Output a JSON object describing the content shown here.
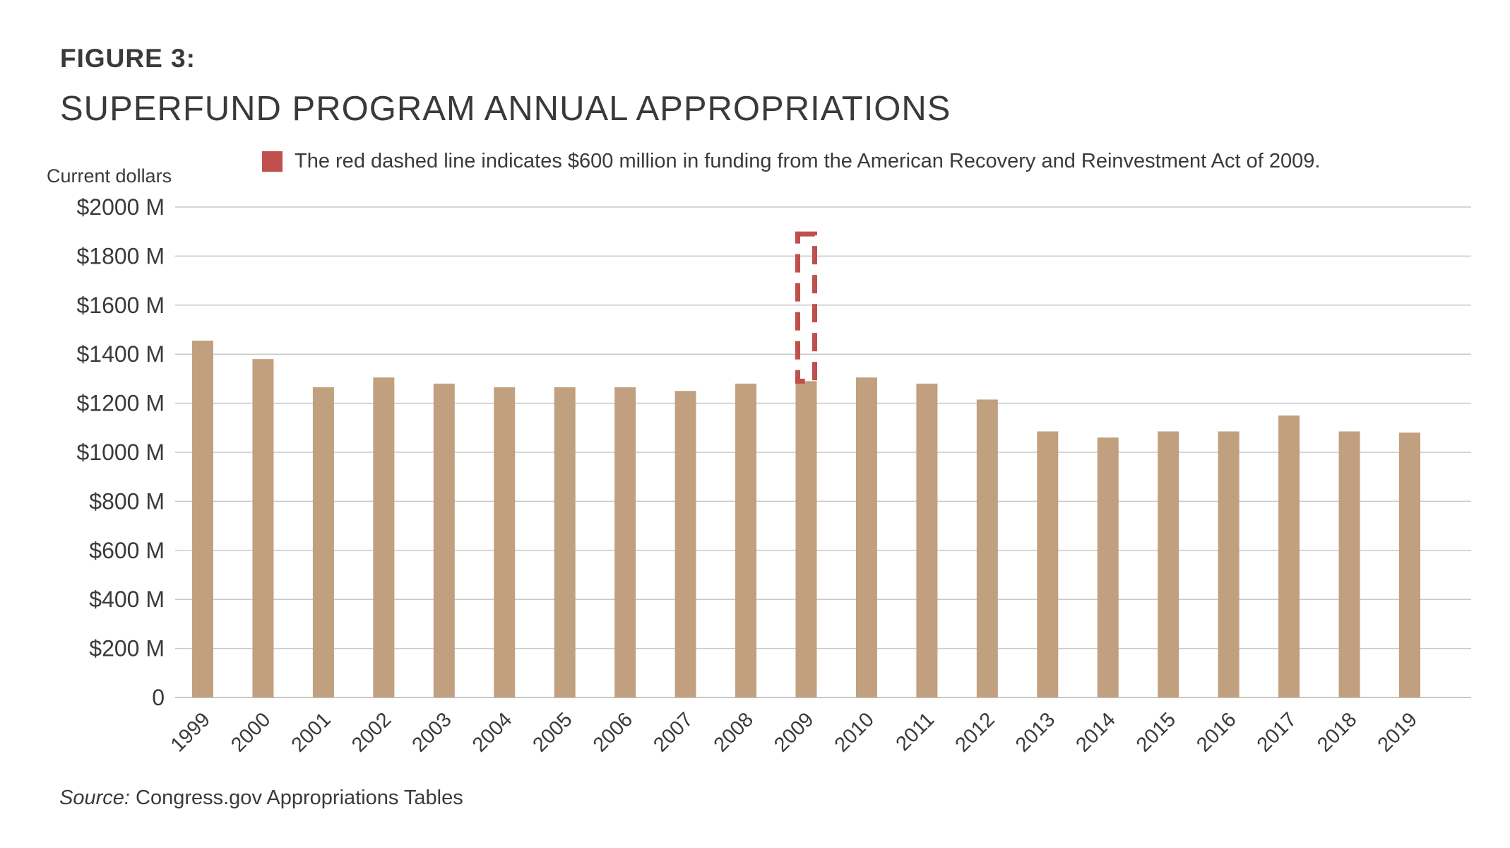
{
  "figure": {
    "label": "FIGURE 3:",
    "title": "SUPERFUND PROGRAM ANNUAL APPROPRIATIONS"
  },
  "legend": {
    "text": "The red dashed line indicates $600 million in funding from the American Recovery and Reinvestment Act of 2009.",
    "color": "#c0504d"
  },
  "source": {
    "prefix": "Source:",
    "text": " Congress.gov Appropriations Tables"
  },
  "colors": {
    "bar": "#c1a07f",
    "arra": "#c0504d",
    "grid": "#c8c8c8",
    "text": "#3a3a3a"
  },
  "chart_data": {
    "type": "bar",
    "title": "SUPERFUND PROGRAM ANNUAL APPROPRIATIONS",
    "ylabel": "Current dollars",
    "xlabel": "",
    "ylim": [
      0,
      2000
    ],
    "yticks": [
      0,
      200,
      400,
      600,
      800,
      1000,
      1200,
      1400,
      1600,
      1800,
      2000
    ],
    "ytick_labels": [
      "0",
      "$200 M",
      "$400 M",
      "$600 M",
      "$800 M",
      "$1000 M",
      "$1200 M",
      "$1400 M",
      "$1600 M",
      "$1800 M",
      "$2000 M"
    ],
    "grid": true,
    "legend_position": "top-right",
    "categories": [
      "1999",
      "2000",
      "2001",
      "2002",
      "2003",
      "2004",
      "2005",
      "2006",
      "2007",
      "2008",
      "2009",
      "2010",
      "2011",
      "2012",
      "2013",
      "2014",
      "2015",
      "2016",
      "2017",
      "2018",
      "2019"
    ],
    "values": [
      1455,
      1380,
      1265,
      1305,
      1280,
      1265,
      1265,
      1265,
      1250,
      1280,
      1290,
      1305,
      1280,
      1215,
      1085,
      1060,
      1085,
      1085,
      1150,
      1085,
      1080
    ],
    "series": [
      {
        "values": [
          1455,
          1380,
          1265,
          1305,
          1280,
          1265,
          1265,
          1265,
          1250,
          1280,
          1290,
          1305,
          1280,
          1215,
          1085,
          1060,
          1085,
          1085,
          1150,
          1085,
          1080
        ]
      }
    ],
    "annotations": [
      {
        "category": "2009",
        "base": 1290,
        "added": 600,
        "style": "dashed",
        "color": "#c0504d"
      }
    ]
  }
}
